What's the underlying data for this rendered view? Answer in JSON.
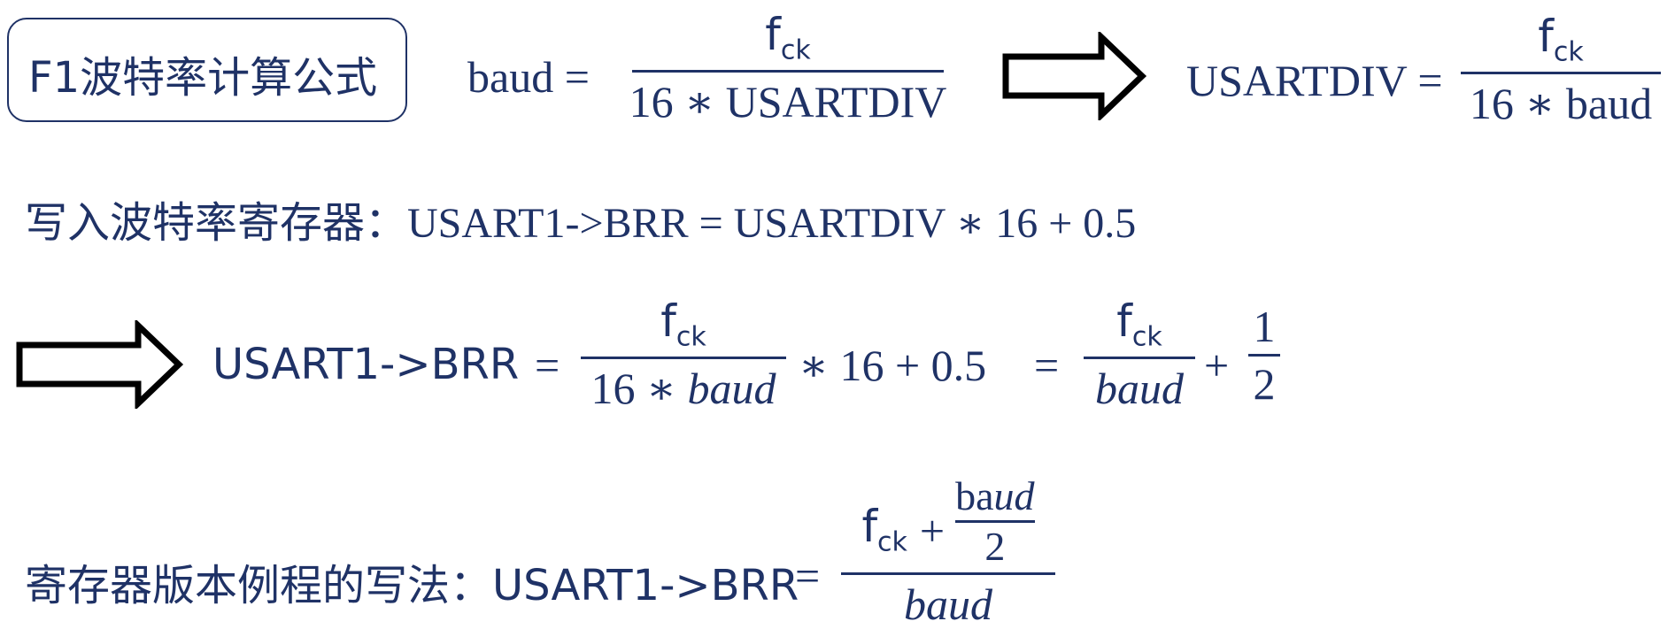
{
  "title": "F1波特率计算公式",
  "formula1": {
    "lhs": "baud",
    "eq": "=",
    "num": "f",
    "num_sub": "ck",
    "den": "16 ∗ USARTDIV"
  },
  "formula2": {
    "lhs": "USARTDIV",
    "eq": "=",
    "num": "f",
    "num_sub": "ck",
    "den": "16 ∗ baud"
  },
  "line2": {
    "label": "写入波特率寄存器：",
    "expr": "USART1->BRR = USARTDIV ∗ 16 + 0.5"
  },
  "line3": {
    "lhs": "USART1->BRR",
    "eq1": "=",
    "frac1_num": "f",
    "frac1_sub": "ck",
    "frac1_den_a": "16 ∗ ",
    "frac1_den_b": "baud",
    "mid": "∗ 16 + 0.5",
    "eq2": "=",
    "frac2_num": "f",
    "frac2_sub": "ck",
    "frac2_den": "baud",
    "plus": "+",
    "frac3_num": "1",
    "frac3_den": "2"
  },
  "line4": {
    "label": "寄存器版本例程的写法：",
    "lhs": "USART1->BRR",
    "eq": "=",
    "num_f": "f",
    "num_sub": "ck",
    "num_plus": "+",
    "inner_num_a": "ba",
    "inner_num_b": "ud",
    "inner_den": "2",
    "den": "baud"
  },
  "colors": {
    "text": "#1f3266",
    "arrow": "#000000"
  },
  "icons": [
    "right-arrow-icon",
    "right-arrow-icon"
  ]
}
